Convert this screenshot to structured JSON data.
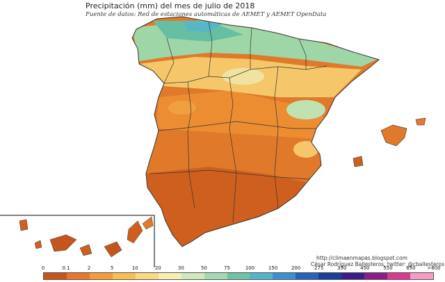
{
  "map": {
    "title": "Precipitación (mm) del mes de julio  de 2018",
    "subtitle": "Fuente de datos: Red de estaciones automáticas de AEMET y AEMET OpenData",
    "credit_url": "http://climaenmapas.blogspot.com",
    "credit_author": "César Rodríguez Ballesteros, twitter: @cballesteros",
    "regions_shown": [
      "Peninsula",
      "Balearic Islands",
      "Canary Islands inset"
    ],
    "colors": {
      "water": "#ffffff",
      "borders": "#333333",
      "dry_dominant": "#e07a2a"
    },
    "legend": {
      "labels": [
        "0",
        "0.1",
        "2",
        "5",
        "10",
        "20",
        "30",
        "50",
        "75",
        "100",
        "150",
        "200",
        "275",
        "350",
        "450",
        "550",
        "650",
        ">800"
      ],
      "colors": [
        "#c6541d",
        "#e8762c",
        "#f49c3b",
        "#f8bd55",
        "#fbd97f",
        "#f7eeb0",
        "#cfe8bd",
        "#a3d8b0",
        "#6dc3a4",
        "#55b4c9",
        "#3d8fd0",
        "#2763b7",
        "#1b3e97",
        "#3b1f86",
        "#8a1f8c",
        "#d73a8e",
        "#f49cc3"
      ]
    }
  }
}
